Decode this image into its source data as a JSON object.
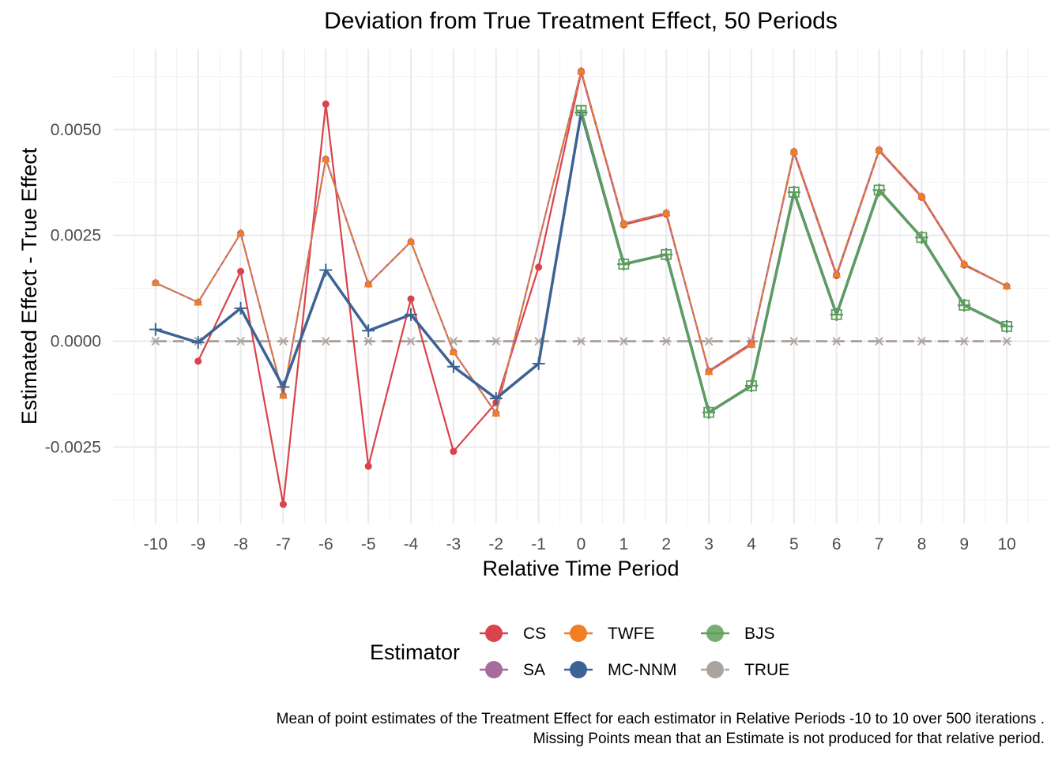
{
  "chart_data": {
    "type": "line",
    "title": "Deviation from True Treatment Effect, 50 Periods",
    "xlabel": "Relative Time Period",
    "ylabel": "Estimated Effect - True Effect",
    "x": [
      -10,
      -9,
      -8,
      -7,
      -6,
      -5,
      -4,
      -3,
      -2,
      -1,
      0,
      1,
      2,
      3,
      4,
      5,
      6,
      7,
      8,
      9,
      10
    ],
    "x_ticks": [
      "-10",
      "-9",
      "-8",
      "-7",
      "-6",
      "-5",
      "-4",
      "-3",
      "-2",
      "-1",
      "0",
      "1",
      "2",
      "3",
      "4",
      "5",
      "6",
      "7",
      "8",
      "9",
      "10"
    ],
    "y_ticks": [
      {
        "value": 0.005,
        "label": "0.0050"
      },
      {
        "value": 0.0025,
        "label": "0.0025"
      },
      {
        "value": 0,
        "label": "0.0000"
      },
      {
        "value": -0.0025,
        "label": "-0.0025"
      }
    ],
    "xlim": [
      -11,
      11
    ],
    "ylim": [
      -0.0043,
      0.0069
    ],
    "grid": true,
    "legend_position": "bottom",
    "legend_title": "Estimator",
    "series": [
      {
        "name": "TRUE",
        "color": "#ADA39E",
        "dashed": true,
        "marker": "asterisk",
        "width": 3,
        "values": [
          0,
          0,
          0,
          0,
          0,
          0,
          0,
          0,
          0,
          0,
          0,
          0,
          0,
          0,
          0,
          0,
          0,
          0,
          0,
          0,
          0
        ]
      },
      {
        "name": "CS",
        "color": "#D9434B",
        "marker": "circle",
        "width": 2.2,
        "values": [
          null,
          -0.00047,
          0.00165,
          -0.00385,
          0.0056,
          -0.00295,
          0.001,
          -0.0026,
          -0.00145,
          0.00175,
          0.00635,
          0.00275,
          0.003,
          -0.0007,
          -5e-05,
          0.00445,
          0.00155,
          0.0045,
          0.0034,
          0.0018,
          0.0013
        ]
      },
      {
        "name": "SA",
        "color": "#A76B9C",
        "marker": "circle",
        "width": 2.2,
        "values": [
          0.00138,
          0.00092,
          0.00255,
          -0.00128,
          0.0043,
          0.00135,
          0.00235,
          -0.00025,
          -0.0017,
          null,
          0.00638,
          0.00278,
          0.00303,
          -0.00072,
          -8e-05,
          0.00448,
          0.00158,
          0.00452,
          0.00342,
          0.00182,
          0.0013
        ]
      },
      {
        "name": "TWFE",
        "color": "#F07E24",
        "marker": "triangle",
        "dashed_fine": true,
        "width": 2,
        "values": [
          0.00138,
          0.00092,
          0.00255,
          -0.00128,
          0.0043,
          0.00135,
          0.00235,
          -0.00025,
          -0.0017,
          null,
          0.00638,
          0.00278,
          0.00303,
          -0.00072,
          -8e-05,
          0.00448,
          0.00158,
          0.00452,
          0.00342,
          0.00182,
          0.0013
        ]
      },
      {
        "name": "BJS",
        "color": "#5E9F58",
        "marker": "box-plus",
        "width": 3,
        "values": [
          null,
          null,
          null,
          null,
          null,
          null,
          null,
          null,
          null,
          null,
          0.00545,
          0.00182,
          0.00205,
          -0.00168,
          -0.00105,
          0.00352,
          0.00063,
          0.00357,
          0.00245,
          0.00085,
          0.00035
        ]
      },
      {
        "name": "MC-NNM",
        "color": "#3D6394",
        "marker": "plus",
        "width": 3.5,
        "values": [
          0.00028,
          -3e-05,
          0.00078,
          -0.00108,
          0.00168,
          0.00025,
          0.00063,
          -0.0006,
          -0.00135,
          -0.00053,
          0.0054,
          0.00182,
          0.00205,
          -0.00168,
          -0.00105,
          0.00352,
          0.00063,
          0.00357,
          0.00245,
          0.00085,
          0.00035
        ]
      }
    ],
    "legend_order": [
      "CS",
      "TWFE",
      "BJS",
      "SA",
      "MC-NNM",
      "TRUE"
    ],
    "caption": [
      "Mean of point estimates of the Treatment Effect for each estimator in Relative Periods -10 to 10 over 500 iterations .",
      "Missing Points mean that an Estimate is not produced for that relative period."
    ]
  }
}
